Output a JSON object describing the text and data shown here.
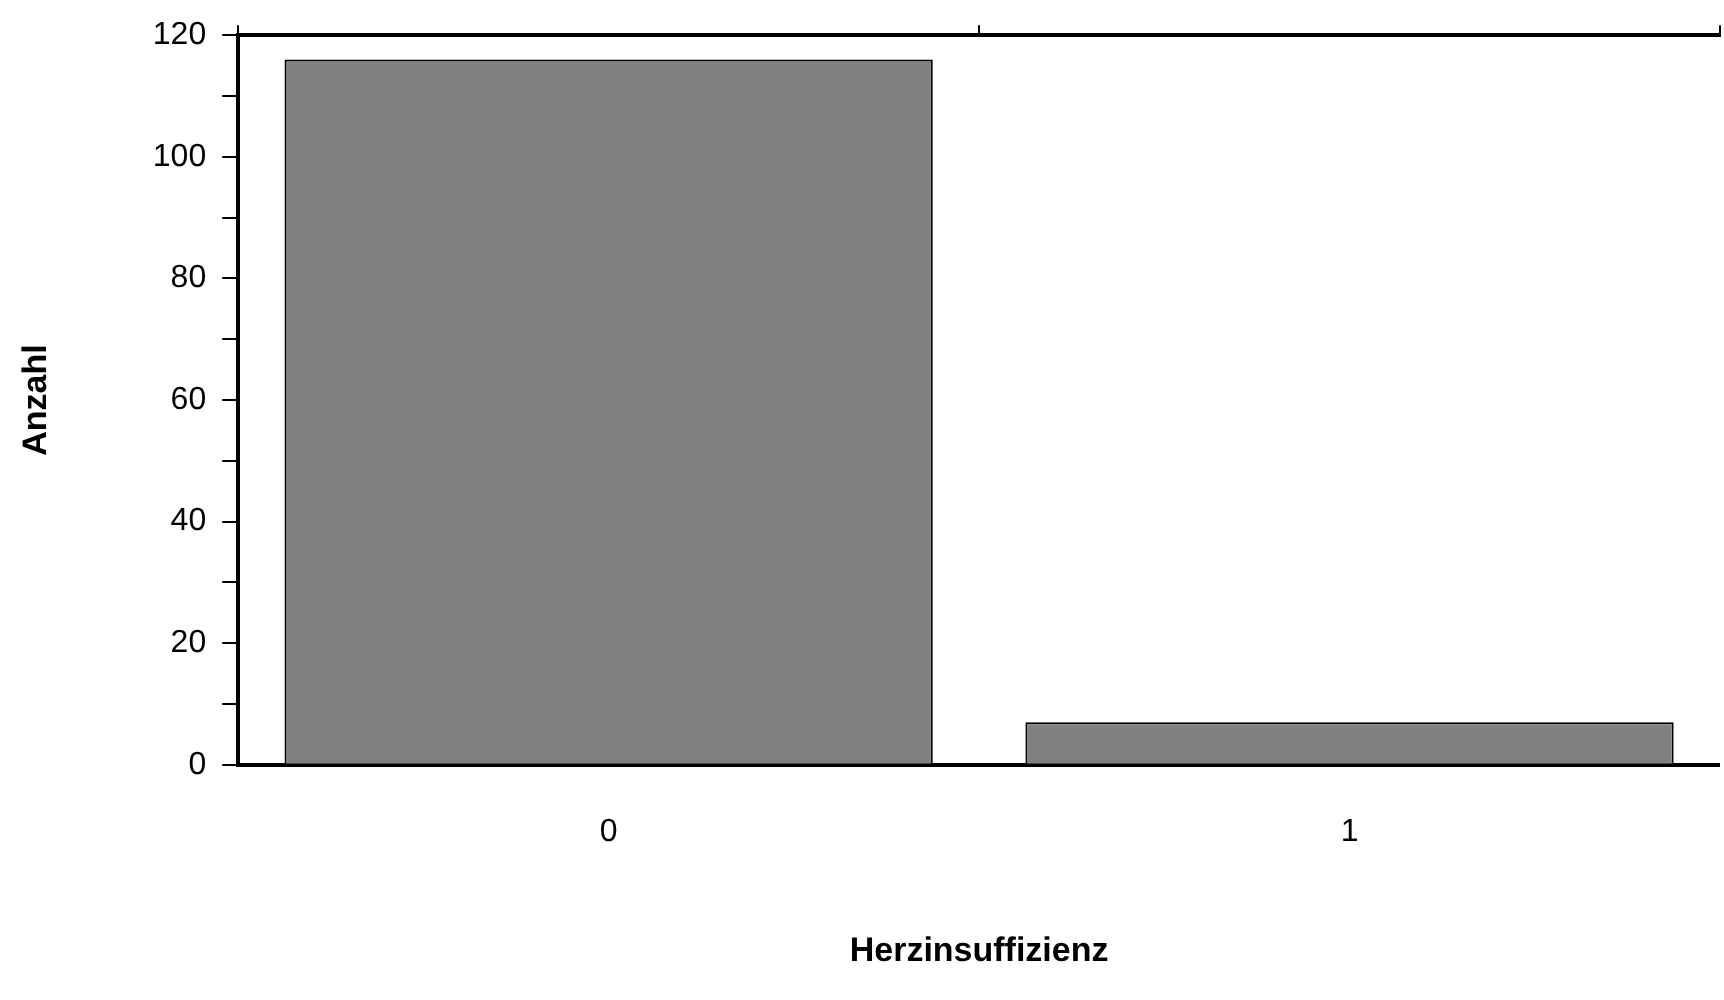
{
  "chart_data": {
    "type": "bar",
    "xlabel": "Herzinsuffizienz",
    "ylabel": "Anzahl",
    "categories": [
      "0",
      "1"
    ],
    "values": [
      116,
      7
    ],
    "color": "#808080",
    "ylim": [
      0,
      120
    ],
    "yticks": [
      0,
      {
        "value": 10,
        "label": null
      },
      20,
      {
        "value": 30,
        "label": null
      },
      40,
      {
        "value": 50,
        "label": null
      },
      60,
      {
        "value": 70,
        "label": null
      },
      80,
      {
        "value": 90,
        "label": null
      },
      100,
      {
        "value": 110,
        "label": null
      },
      120
    ],
    "grid": false,
    "legend": false
  }
}
